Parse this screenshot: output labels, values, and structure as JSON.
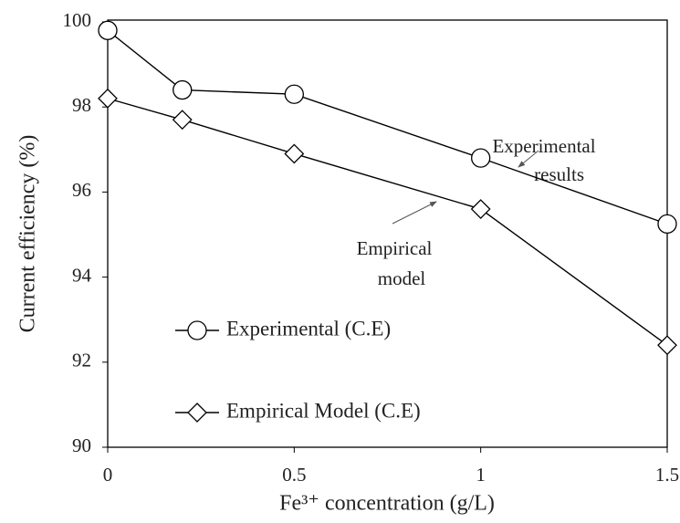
{
  "chart_data": {
    "type": "line",
    "x_label": "Fe³⁺ concentration (g/L)",
    "y_label": "Current efficiency (%)",
    "x": [
      0,
      0.2,
      0.5,
      1,
      1.5
    ],
    "series": [
      {
        "name": "Experimental (C.E)",
        "color": "#000000",
        "marker": "circle",
        "values": [
          99.8,
          98.4,
          98.3,
          96.8,
          95.25
        ]
      },
      {
        "name": "Empirical Model (C.E)",
        "color": "#000000",
        "marker": "diamond",
        "values": [
          98.2,
          97.7,
          96.9,
          95.6,
          92.4
        ]
      }
    ],
    "annotations": [
      [
        "Experimental",
        "results"
      ],
      [
        "Empirical",
        "model"
      ]
    ],
    "xlim": [
      0,
      1.5
    ],
    "xticks": [
      0,
      0.5,
      1,
      1.5
    ],
    "ylim": [
      90,
      100
    ],
    "yticks": [
      90,
      92,
      94,
      96,
      98,
      100
    ],
    "grid": false,
    "legend": "lower left"
  }
}
